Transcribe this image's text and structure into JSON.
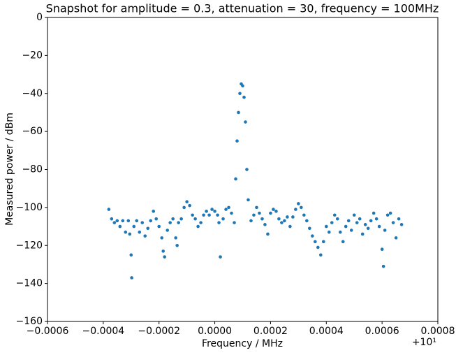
{
  "chart_data": {
    "type": "scatter",
    "title": "Snapshot for amplitude = 0.3, attenuation = 30, frequency = 100MHz",
    "x_label": "Frequency / MHz",
    "y_label": "Measured power / dBm",
    "x_offset_label": "+10¹",
    "color": "#1f77b4",
    "xlim": [
      -0.0006,
      0.0008
    ],
    "ylim": [
      -160,
      0
    ],
    "xticks": [
      {
        "value": -0.0006,
        "label": "−0.0006"
      },
      {
        "value": -0.0004,
        "label": "−0.0004"
      },
      {
        "value": -0.0002,
        "label": "−0.0002"
      },
      {
        "value": 0,
        "label": "0.0000"
      },
      {
        "value": 0.0002,
        "label": "0.0002"
      },
      {
        "value": 0.0004,
        "label": "0.0004"
      },
      {
        "value": 0.0006,
        "label": "0.0006"
      },
      {
        "value": 0.0008,
        "label": "0.0008"
      }
    ],
    "yticks": [
      0,
      {
        "value": -20,
        "label": "−20"
      },
      {
        "value": -40,
        "label": "−40"
      },
      {
        "value": -60,
        "label": "−60"
      },
      {
        "value": -80,
        "label": "−80"
      },
      {
        "value": -100,
        "label": "−100"
      },
      {
        "value": -120,
        "label": "−120"
      },
      {
        "value": -140,
        "label": "−140"
      },
      {
        "value": -160,
        "label": "−160"
      }
    ],
    "grid": false,
    "x": [
      -0.00038,
      -0.00037,
      -0.00036,
      -0.00035,
      -0.00034,
      -0.00033,
      -0.00032,
      -0.00031,
      -0.000305,
      -0.0003,
      -0.000298,
      -0.00029,
      -0.00028,
      -0.00027,
      -0.00026,
      -0.00025,
      -0.00024,
      -0.00023,
      -0.00022,
      -0.00021,
      -0.0002,
      -0.00019,
      -0.000185,
      -0.00018,
      -0.00017,
      -0.00016,
      -0.00015,
      -0.00014,
      -0.000135,
      -0.00013,
      -0.00012,
      -0.00011,
      -0.0001,
      -9e-05,
      -8e-05,
      -7e-05,
      -6e-05,
      -5e-05,
      -4e-05,
      -3e-05,
      -2e-05,
      -1e-05,
      0,
      1e-05,
      1.5e-05,
      2e-05,
      3e-05,
      4e-05,
      5e-05,
      6e-05,
      7e-05,
      7.5e-05,
      8e-05,
      8.5e-05,
      9e-05,
      9.5e-05,
      0.0001,
      0.000105,
      0.00011,
      0.000115,
      0.00012,
      0.00013,
      0.00014,
      0.00015,
      0.00016,
      0.00017,
      0.00018,
      0.00019,
      0.0002,
      0.00021,
      0.00022,
      0.00023,
      0.00024,
      0.00025,
      0.00026,
      0.00027,
      0.00028,
      0.00029,
      0.0003,
      0.00031,
      0.00032,
      0.00033,
      0.00034,
      0.00035,
      0.00036,
      0.00037,
      0.00038,
      0.00039,
      0.0004,
      0.00041,
      0.00042,
      0.00043,
      0.00044,
      0.00045,
      0.00046,
      0.00047,
      0.00048,
      0.00049,
      0.0005,
      0.00051,
      0.00052,
      0.00053,
      0.00054,
      0.00055,
      0.00056,
      0.00057,
      0.00058,
      0.00059,
      0.0006,
      0.000605,
      0.00061,
      0.00062,
      0.00063,
      0.00064,
      0.00065,
      0.00066,
      0.00067
    ],
    "values": [
      -101,
      -106,
      -108,
      -107,
      -110,
      -107,
      -113,
      -107,
      -114,
      -125,
      -137,
      -110,
      -107,
      -113,
      -108,
      -115,
      -111,
      -107,
      -102,
      -106,
      -110,
      -116,
      -123,
      -126,
      -112,
      -108,
      -106,
      -116,
      -120,
      -108,
      -106,
      -100,
      -97,
      -99,
      -104,
      -106,
      -110,
      -108,
      -104,
      -102,
      -104,
      -101,
      -102,
      -104,
      -108,
      -126,
      -106,
      -101,
      -100,
      -103,
      -108,
      -85,
      -65,
      -50,
      -40,
      -35,
      -36,
      -42,
      -55,
      -80,
      -96,
      -107,
      -104,
      -100,
      -103,
      -106,
      -109,
      -114,
      -103,
      -101,
      -102,
      -106,
      -108,
      -107,
      -105,
      -110,
      -105,
      -101,
      -98,
      -100,
      -104,
      -107,
      -111,
      -115,
      -118,
      -121,
      -125,
      -118,
      -110,
      -113,
      -108,
      -104,
      -106,
      -113,
      -118,
      -110,
      -107,
      -112,
      -104,
      -108,
      -106,
      -114,
      -109,
      -111,
      -107,
      -103,
      -106,
      -110,
      -122,
      -131,
      -112,
      -104,
      -103,
      -108,
      -116,
      -106,
      -109
    ]
  }
}
